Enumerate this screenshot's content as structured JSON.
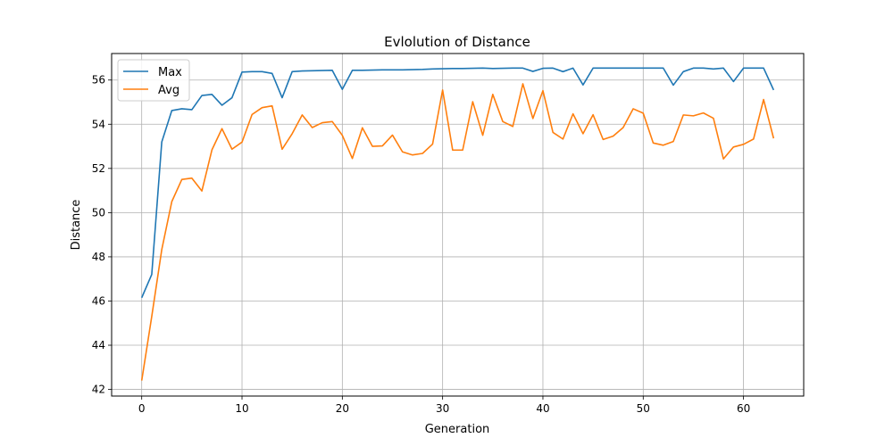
{
  "chart_data": {
    "type": "line",
    "title": "Evlolution of Distance",
    "xlabel": "Generation",
    "ylabel": "Distance",
    "xlim": [
      -3,
      66
    ],
    "ylim": [
      41.7,
      57.2
    ],
    "xticks": [
      0,
      10,
      20,
      30,
      40,
      50,
      60
    ],
    "yticks": [
      42,
      44,
      46,
      48,
      50,
      52,
      54,
      56
    ],
    "grid": true,
    "legend_position": "top-left",
    "x": [
      0,
      1,
      2,
      3,
      4,
      5,
      6,
      7,
      8,
      9,
      10,
      11,
      12,
      13,
      14,
      15,
      16,
      17,
      18,
      19,
      20,
      21,
      22,
      23,
      24,
      25,
      26,
      27,
      28,
      29,
      30,
      31,
      32,
      33,
      34,
      35,
      36,
      37,
      38,
      39,
      40,
      41,
      42,
      43,
      44,
      45,
      46,
      47,
      48,
      49,
      50,
      51,
      52,
      53,
      54,
      55,
      56,
      57,
      58,
      59,
      60,
      61,
      62,
      63
    ],
    "series": [
      {
        "name": "Max",
        "color": "#1f77b4",
        "values": [
          46.15,
          47.2,
          53.2,
          54.62,
          54.7,
          54.66,
          55.3,
          55.35,
          54.86,
          55.2,
          56.36,
          56.38,
          56.38,
          56.3,
          55.2,
          56.38,
          56.41,
          56.42,
          56.43,
          56.44,
          55.58,
          56.44,
          56.44,
          56.45,
          56.46,
          56.46,
          56.46,
          56.47,
          56.48,
          56.5,
          56.51,
          56.52,
          56.52,
          56.53,
          56.54,
          56.52,
          56.53,
          56.54,
          56.54,
          56.39,
          56.53,
          56.54,
          56.38,
          56.54,
          55.78,
          56.54,
          56.54,
          56.54,
          56.54,
          56.54,
          56.54,
          56.54,
          56.54,
          55.77,
          56.38,
          56.54,
          56.54,
          56.5,
          56.54,
          55.93,
          56.54,
          56.54,
          56.54,
          55.55
        ]
      },
      {
        "name": "Avg",
        "color": "#ff7f0e",
        "values": [
          42.4,
          45.3,
          48.33,
          50.5,
          51.5,
          51.56,
          50.98,
          52.84,
          53.8,
          52.87,
          53.19,
          54.44,
          54.75,
          54.83,
          52.87,
          53.57,
          54.42,
          53.85,
          54.07,
          54.12,
          53.5,
          52.45,
          53.84,
          53.0,
          53.02,
          53.51,
          52.75,
          52.61,
          52.68,
          53.1,
          55.55,
          52.83,
          52.83,
          55.02,
          53.5,
          55.35,
          54.12,
          53.9,
          55.83,
          54.26,
          55.52,
          53.63,
          53.33,
          54.47,
          53.57,
          54.43,
          53.31,
          53.46,
          53.85,
          54.7,
          54.5,
          53.15,
          53.05,
          53.22,
          54.42,
          54.38,
          54.51,
          54.27,
          52.43,
          52.97,
          53.09,
          53.33,
          55.12,
          53.36
        ]
      }
    ]
  }
}
